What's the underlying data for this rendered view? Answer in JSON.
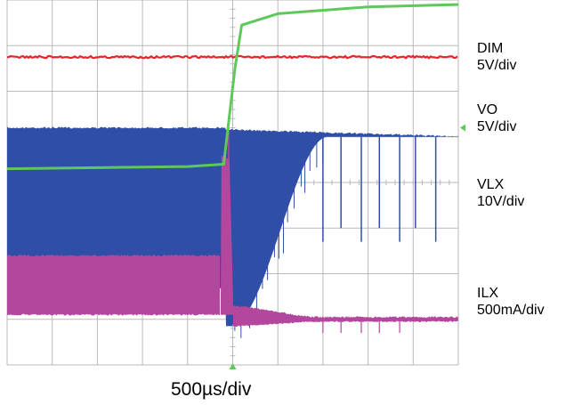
{
  "timebase": "500µs/div",
  "colors": {
    "dim": "#e8232a",
    "vo": "#5ec95a",
    "vlx": "#2f4ea8",
    "ilx": "#b3479e",
    "grid": "#b9b9b9",
    "marker": "#5ec95a"
  },
  "channels": [
    {
      "name": "DIM",
      "scale": "5V/div"
    },
    {
      "name": "VO",
      "scale": "5V/div"
    },
    {
      "name": "VLX",
      "scale": "10V/div"
    },
    {
      "name": "ILX",
      "scale": "500mA/div"
    }
  ],
  "chart_data": {
    "type": "line",
    "title": "",
    "xlabel": "500µs/div",
    "grid": true,
    "x_unit": "div",
    "x_range": [
      0,
      10
    ],
    "y_unit": "div",
    "y_range": [
      0,
      8
    ],
    "series": [
      {
        "name": "DIM",
        "shape": "flat",
        "level": 6.75
      },
      {
        "name": "VO",
        "shape": "step_rise",
        "points": [
          [
            0,
            4.3
          ],
          [
            4.0,
            4.35
          ],
          [
            4.8,
            4.4
          ],
          [
            5.05,
            6.5
          ],
          [
            5.2,
            7.45
          ],
          [
            6.0,
            7.7
          ],
          [
            8.0,
            7.85
          ],
          [
            10.0,
            7.9
          ]
        ]
      },
      {
        "name": "VLX",
        "shape": "switching",
        "top": 5.2,
        "bottom": 1.7,
        "edge": 4.85,
        "settle_end": 7.1
      },
      {
        "name": "ILX",
        "shape": "switching",
        "top": 2.4,
        "baseline": 1.1,
        "edge": 4.85
      }
    ]
  }
}
